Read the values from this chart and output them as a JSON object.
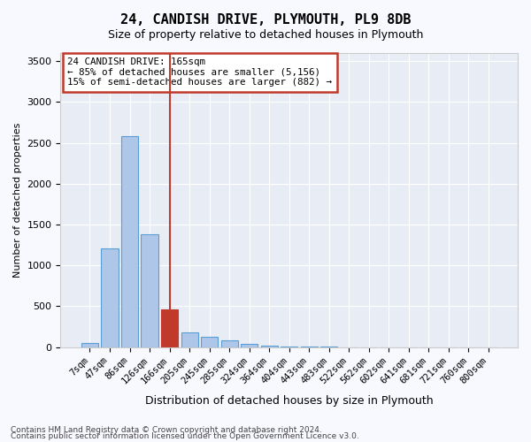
{
  "title": "24, CANDISH DRIVE, PLYMOUTH, PL9 8DB",
  "subtitle": "Size of property relative to detached houses in Plymouth",
  "xlabel": "Distribution of detached houses by size in Plymouth",
  "ylabel": "Number of detached properties",
  "footnote1": "Contains HM Land Registry data © Crown copyright and database right 2024.",
  "footnote2": "Contains public sector information licensed under the Open Government Licence v3.0.",
  "annotation_line1": "24 CANDISH DRIVE: 165sqm",
  "annotation_line2": "← 85% of detached houses are smaller (5,156)",
  "annotation_line3": "15% of semi-detached houses are larger (882) →",
  "highlight_bar_index": 4,
  "categories": [
    "7sqm",
    "47sqm",
    "86sqm",
    "126sqm",
    "166sqm",
    "205sqm",
    "245sqm",
    "285sqm",
    "324sqm",
    "364sqm",
    "404sqm",
    "443sqm",
    "483sqm",
    "522sqm",
    "562sqm",
    "602sqm",
    "641sqm",
    "681sqm",
    "721sqm",
    "760sqm",
    "800sqm"
  ],
  "values": [
    50,
    1210,
    2580,
    1380,
    460,
    175,
    130,
    80,
    35,
    15,
    8,
    5,
    5,
    0,
    0,
    0,
    0,
    0,
    0,
    0,
    0
  ],
  "bar_color": "#aec6e8",
  "bar_edge_color": "#5a9fd4",
  "highlight_color": "#c0392b",
  "highlight_line_color": "#c0392b",
  "background_color": "#e8edf5",
  "grid_color": "#ffffff",
  "fig_bg_color": "#f8f8ff",
  "ylim": [
    0,
    3600
  ],
  "yticks": [
    0,
    500,
    1000,
    1500,
    2000,
    2500,
    3000,
    3500
  ]
}
